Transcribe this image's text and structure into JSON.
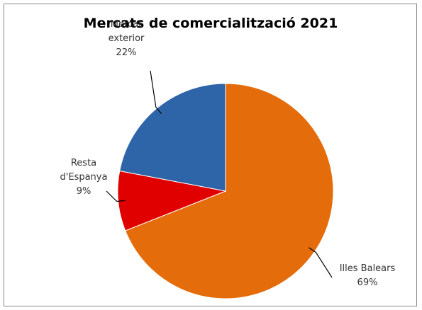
{
  "chart_data": {
    "type": "pie",
    "title": "Mercats de comercialització  2021",
    "slices": [
      {
        "label_lines": [
          "Illes Balears"
        ],
        "value": 69,
        "value_label": "69%",
        "color": "#E46C0A"
      },
      {
        "label_lines": [
          "Resta",
          "d'Espanya"
        ],
        "value": 9,
        "value_label": "9%",
        "color": "#E00000"
      },
      {
        "label_lines": [
          "Mercat",
          "exterior"
        ],
        "value": 22,
        "value_label": "22%",
        "color": "#2E64A8"
      }
    ],
    "legend": "none"
  }
}
